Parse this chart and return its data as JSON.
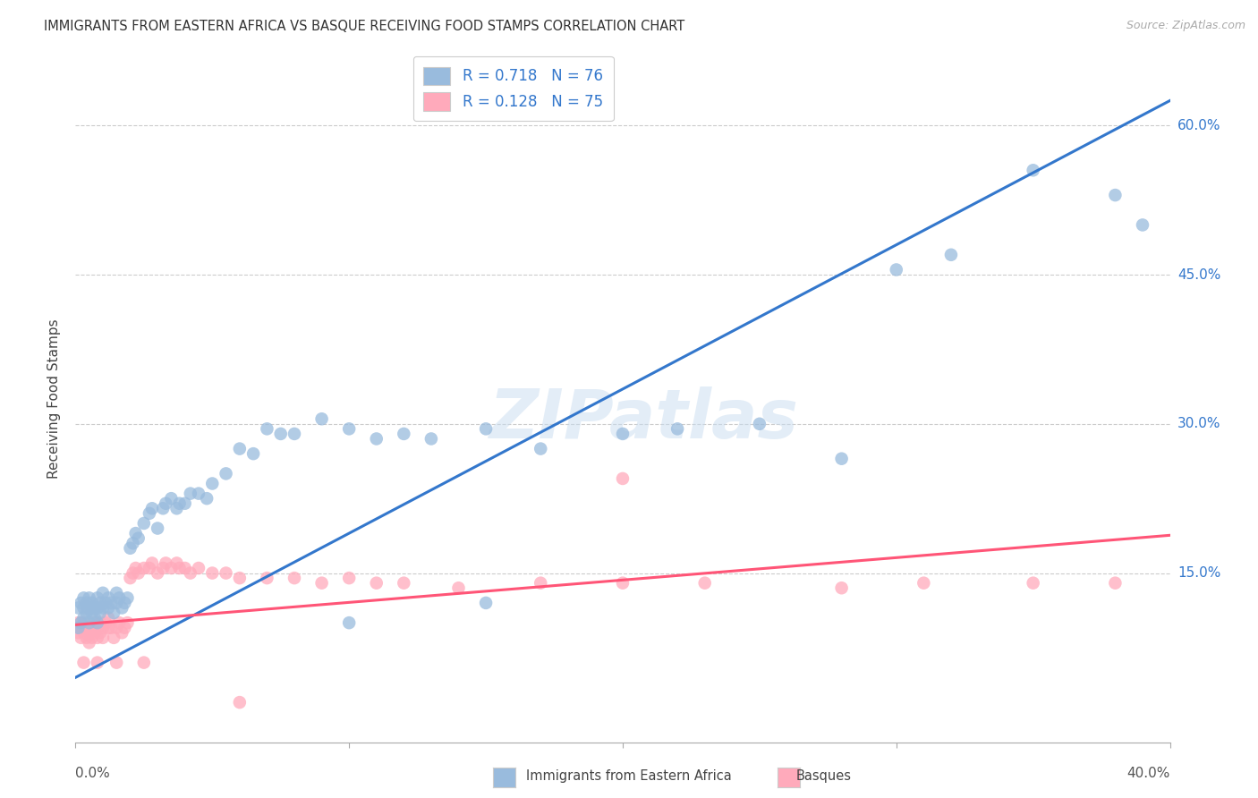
{
  "title": "IMMIGRANTS FROM EASTERN AFRICA VS BASQUE RECEIVING FOOD STAMPS CORRELATION CHART",
  "source": "Source: ZipAtlas.com",
  "ylabel": "Receiving Food Stamps",
  "yticks": [
    "15.0%",
    "30.0%",
    "45.0%",
    "60.0%"
  ],
  "ytick_vals": [
    0.15,
    0.3,
    0.45,
    0.6
  ],
  "xlim": [
    0.0,
    0.4
  ],
  "ylim": [
    -0.02,
    0.67
  ],
  "blue_color": "#99BBDD",
  "pink_color": "#FFAABB",
  "blue_line_color": "#3377CC",
  "pink_line_color": "#FF5577",
  "watermark": "ZIPatlas",
  "blue_trend_x": [
    0.0,
    0.4
  ],
  "blue_trend_y": [
    0.045,
    0.625
  ],
  "pink_trend_x": [
    0.0,
    0.4
  ],
  "pink_trend_y": [
    0.098,
    0.188
  ],
  "blue_scatter_x": [
    0.001,
    0.001,
    0.002,
    0.002,
    0.003,
    0.003,
    0.003,
    0.004,
    0.004,
    0.005,
    0.005,
    0.005,
    0.006,
    0.006,
    0.007,
    0.007,
    0.008,
    0.008,
    0.008,
    0.009,
    0.009,
    0.01,
    0.01,
    0.011,
    0.012,
    0.012,
    0.013,
    0.014,
    0.015,
    0.015,
    0.016,
    0.017,
    0.018,
    0.019,
    0.02,
    0.021,
    0.022,
    0.023,
    0.025,
    0.027,
    0.028,
    0.03,
    0.032,
    0.033,
    0.035,
    0.037,
    0.038,
    0.04,
    0.042,
    0.045,
    0.048,
    0.05,
    0.055,
    0.06,
    0.065,
    0.07,
    0.075,
    0.08,
    0.09,
    0.1,
    0.11,
    0.12,
    0.13,
    0.15,
    0.17,
    0.2,
    0.22,
    0.25,
    0.28,
    0.3,
    0.32,
    0.35,
    0.38,
    0.39,
    0.1,
    0.15
  ],
  "blue_scatter_y": [
    0.095,
    0.115,
    0.1,
    0.12,
    0.105,
    0.115,
    0.125,
    0.11,
    0.12,
    0.1,
    0.115,
    0.125,
    0.11,
    0.12,
    0.105,
    0.115,
    0.1,
    0.115,
    0.125,
    0.11,
    0.12,
    0.115,
    0.13,
    0.12,
    0.125,
    0.115,
    0.12,
    0.11,
    0.12,
    0.13,
    0.125,
    0.115,
    0.12,
    0.125,
    0.175,
    0.18,
    0.19,
    0.185,
    0.2,
    0.21,
    0.215,
    0.195,
    0.215,
    0.22,
    0.225,
    0.215,
    0.22,
    0.22,
    0.23,
    0.23,
    0.225,
    0.24,
    0.25,
    0.275,
    0.27,
    0.295,
    0.29,
    0.29,
    0.305,
    0.295,
    0.285,
    0.29,
    0.285,
    0.295,
    0.275,
    0.29,
    0.295,
    0.3,
    0.265,
    0.455,
    0.47,
    0.555,
    0.53,
    0.5,
    0.1,
    0.12
  ],
  "pink_scatter_x": [
    0.001,
    0.001,
    0.001,
    0.002,
    0.002,
    0.002,
    0.003,
    0.003,
    0.003,
    0.004,
    0.004,
    0.005,
    0.005,
    0.005,
    0.006,
    0.006,
    0.007,
    0.007,
    0.008,
    0.008,
    0.009,
    0.009,
    0.01,
    0.01,
    0.011,
    0.012,
    0.012,
    0.013,
    0.014,
    0.015,
    0.016,
    0.017,
    0.018,
    0.019,
    0.02,
    0.021,
    0.022,
    0.023,
    0.025,
    0.027,
    0.028,
    0.03,
    0.032,
    0.033,
    0.035,
    0.037,
    0.038,
    0.04,
    0.042,
    0.045,
    0.05,
    0.055,
    0.06,
    0.07,
    0.08,
    0.09,
    0.1,
    0.11,
    0.12,
    0.14,
    0.17,
    0.2,
    0.23,
    0.28,
    0.31,
    0.35,
    0.38,
    0.003,
    0.008,
    0.015,
    0.025,
    0.06,
    0.2
  ],
  "pink_scatter_y": [
    0.09,
    0.095,
    0.1,
    0.085,
    0.095,
    0.1,
    0.09,
    0.095,
    0.1,
    0.085,
    0.095,
    0.08,
    0.09,
    0.095,
    0.085,
    0.095,
    0.09,
    0.1,
    0.085,
    0.095,
    0.09,
    0.1,
    0.085,
    0.095,
    0.1,
    0.095,
    0.105,
    0.095,
    0.085,
    0.095,
    0.1,
    0.09,
    0.095,
    0.1,
    0.145,
    0.15,
    0.155,
    0.15,
    0.155,
    0.155,
    0.16,
    0.15,
    0.155,
    0.16,
    0.155,
    0.16,
    0.155,
    0.155,
    0.15,
    0.155,
    0.15,
    0.15,
    0.145,
    0.145,
    0.145,
    0.14,
    0.145,
    0.14,
    0.14,
    0.135,
    0.14,
    0.14,
    0.14,
    0.135,
    0.14,
    0.14,
    0.14,
    0.06,
    0.06,
    0.06,
    0.06,
    0.02,
    0.245
  ]
}
